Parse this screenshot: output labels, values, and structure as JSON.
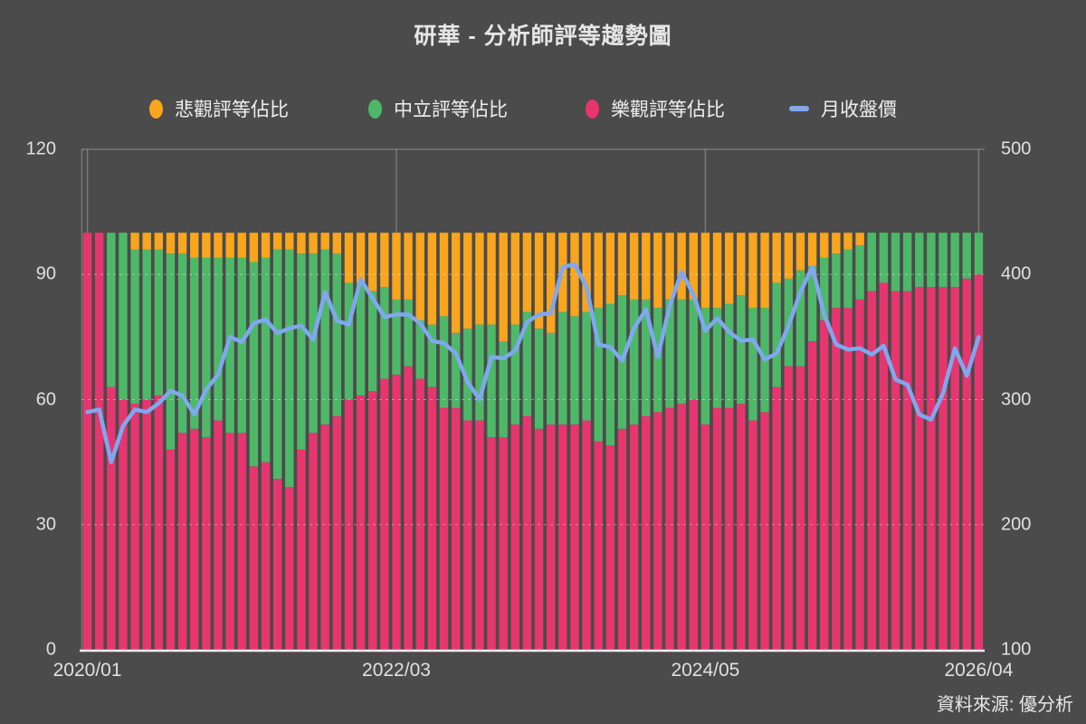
{
  "title": "研華 - 分析師評等趨勢圖",
  "source": "資料來源: 優分析",
  "legend": [
    {
      "label": "悲觀評等佔比",
      "color": "#f9a51e",
      "marker": "oval"
    },
    {
      "label": "中立評等佔比",
      "color": "#4eb869",
      "marker": "oval"
    },
    {
      "label": "樂觀評等佔比",
      "color": "#e7356f",
      "marker": "oval"
    },
    {
      "label": "月收盤價",
      "color": "#7fa8f0",
      "marker": "dash"
    }
  ],
  "colors": {
    "background": "#4b4b4b",
    "pessimistic": "#f9a51e",
    "neutral": "#4eb869",
    "optimistic": "#e7356f",
    "price_line": "#7fa8f0",
    "axis_text": "#e0e0e0",
    "gridline": "rgba(255,255,255,0.38)",
    "frame_line": "rgba(255,255,255,0.25)",
    "baseline": "#f2f2f2"
  },
  "chart_data": {
    "type": "bar",
    "subtype": "100pct-stacked-bars-with-line-overlay",
    "title": "研華 - 分析師評等趨勢圖",
    "x": [
      "2020/01",
      "2020/02",
      "2020/03",
      "2020/04",
      "2020/05",
      "2020/06",
      "2020/07",
      "2020/08",
      "2020/09",
      "2020/10",
      "2020/11",
      "2020/12",
      "2021/01",
      "2021/02",
      "2021/03",
      "2021/04",
      "2021/05",
      "2021/06",
      "2021/07",
      "2021/08",
      "2021/09",
      "2021/10",
      "2021/11",
      "2021/12",
      "2022/01",
      "2022/02",
      "2022/03",
      "2022/04",
      "2022/05",
      "2022/06",
      "2022/07",
      "2022/08",
      "2022/09",
      "2022/10",
      "2022/11",
      "2022/12",
      "2023/01",
      "2023/02",
      "2023/03",
      "2023/04",
      "2023/05",
      "2023/06",
      "2023/07",
      "2023/08",
      "2023/09",
      "2023/10",
      "2023/11",
      "2023/12",
      "2024/01",
      "2024/02",
      "2024/03",
      "2024/04",
      "2024/05",
      "2024/06",
      "2024/07",
      "2024/08",
      "2024/09",
      "2024/10",
      "2024/11",
      "2024/12",
      "2025/01",
      "2025/02",
      "2025/03",
      "2025/04",
      "2025/05",
      "2025/06",
      "2025/07",
      "2025/08",
      "2025/09",
      "2025/10",
      "2025/11",
      "2025/12",
      "2026/01",
      "2026/02",
      "2026/03",
      "2026/04"
    ],
    "x_tick_labels": [
      "2020/01",
      "2022/03",
      "2024/05",
      "2026/04"
    ],
    "x_tick_indices": [
      0,
      26,
      52,
      75
    ],
    "series": [
      {
        "name": "悲觀評等佔比",
        "type": "bar",
        "stack_pos": "top",
        "axis": "left",
        "color": "#f9a51e",
        "values": [
          0,
          0,
          0,
          0,
          4,
          4,
          4,
          5,
          5,
          6,
          6,
          6,
          6,
          6,
          7,
          6,
          4,
          4,
          5,
          5,
          4,
          5,
          12,
          12,
          14,
          13,
          16,
          16,
          21,
          22,
          20,
          24,
          23,
          22,
          22,
          26,
          22,
          19,
          23,
          24,
          19,
          20,
          19,
          18,
          17,
          15,
          16,
          16,
          18,
          16,
          16,
          16,
          18,
          18,
          17,
          15,
          18,
          18,
          12,
          11,
          9,
          8,
          6,
          5,
          4,
          3,
          0,
          0,
          0,
          0,
          0,
          0,
          0,
          0,
          0,
          0
        ]
      },
      {
        "name": "中立評等佔比",
        "type": "bar",
        "stack_pos": "middle",
        "axis": "left",
        "color": "#4eb869",
        "values": [
          0,
          0,
          37,
          40,
          37,
          36,
          35,
          47,
          43,
          41,
          43,
          39,
          42,
          42,
          49,
          49,
          55,
          57,
          47,
          43,
          42,
          39,
          28,
          27,
          24,
          22,
          18,
          16,
          14,
          15,
          22,
          18,
          22,
          23,
          27,
          23,
          24,
          25,
          24,
          22,
          27,
          26,
          26,
          32,
          34,
          32,
          30,
          28,
          25,
          26,
          25,
          24,
          28,
          24,
          25,
          26,
          27,
          25,
          25,
          21,
          23,
          18,
          15,
          13,
          14,
          13,
          14,
          12,
          14,
          14,
          13,
          13,
          13,
          13,
          11,
          10
        ]
      },
      {
        "name": "樂觀評等佔比",
        "type": "bar",
        "stack_pos": "bottom",
        "axis": "left",
        "color": "#e7356f",
        "values": [
          100,
          100,
          63,
          60,
          59,
          60,
          61,
          48,
          52,
          53,
          51,
          55,
          52,
          52,
          44,
          45,
          41,
          39,
          48,
          52,
          54,
          56,
          60,
          61,
          62,
          65,
          66,
          68,
          65,
          63,
          58,
          58,
          55,
          55,
          51,
          51,
          54,
          56,
          53,
          54,
          54,
          54,
          55,
          50,
          49,
          53,
          54,
          56,
          57,
          58,
          59,
          60,
          54,
          58,
          58,
          59,
          55,
          57,
          63,
          68,
          68,
          74,
          79,
          82,
          82,
          84,
          86,
          88,
          86,
          86,
          87,
          87,
          87,
          87,
          89,
          90
        ]
      },
      {
        "name": "月收盤價",
        "type": "line",
        "axis": "right",
        "color": "#7fa8f0",
        "values": [
          290,
          292,
          250,
          279,
          292,
          290,
          297,
          307,
          303,
          288,
          308,
          320,
          350,
          346,
          361,
          364,
          353,
          357,
          359,
          348,
          386,
          363,
          360,
          396,
          381,
          366,
          368,
          368,
          361,
          347,
          345,
          337,
          314,
          300,
          334,
          333,
          339,
          362,
          368,
          369,
          406,
          408,
          390,
          344,
          342,
          331,
          357,
          372,
          334,
          375,
          402,
          384,
          355,
          365,
          354,
          347,
          348,
          332,
          337,
          359,
          386,
          406,
          368,
          344,
          340,
          341,
          336,
          343,
          316,
          312,
          288,
          284,
          305,
          341,
          319,
          350
        ]
      }
    ],
    "left_axis": {
      "label": "",
      "range": [
        0,
        120
      ],
      "ticks": [
        0,
        30,
        60,
        90,
        120
      ]
    },
    "right_axis": {
      "label": "",
      "range": [
        100,
        500
      ],
      "ticks": [
        100,
        200,
        300,
        400,
        500
      ]
    },
    "grid": {
      "horizontal": "dashed at 30/60/90 drawn over bars",
      "vertical": "solid at labeled x ticks behind bars"
    },
    "legend_position": "top",
    "source": "資料來源: 優分析"
  }
}
